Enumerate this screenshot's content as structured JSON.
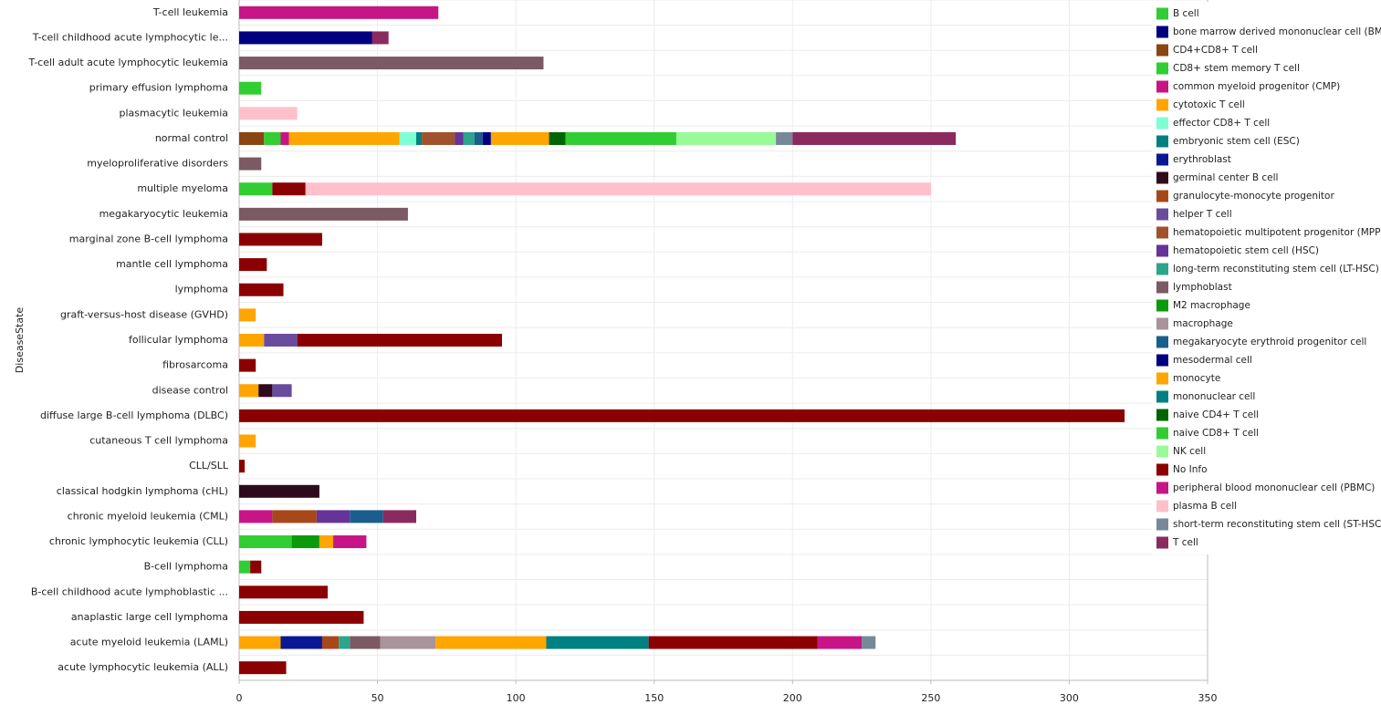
{
  "chart_data": {
    "type": "stacked-bar-horizontal",
    "y_label": "DiseaseState",
    "categories": [
      "T-cell leukemia",
      "T-cell childhood acute lymphocytic le...",
      "T-cell adult acute lymphocytic leukemia",
      "primary effusion lymphoma",
      "plasmacytic leukemia",
      "normal control",
      "myeloproliferative disorders",
      "multiple myeloma",
      "megakaryocytic leukemia",
      "marginal zone B-cell lymphoma",
      "mantle cell lymphoma",
      "lymphoma",
      "graft-versus-host disease (GVHD)",
      "follicular lymphoma",
      "fibrosarcoma",
      "disease control",
      "diffuse large B-cell lymphoma (DLBC)",
      "cutaneous T cell lymphoma",
      "CLL/SLL",
      "classical hodgkin lymphoma (cHL)",
      "chronic myeloid leukemia (CML)",
      "chronic lymphocytic leukemia (CLL)",
      "B-cell lymphoma",
      "B-cell childhood acute lymphoblastic ...",
      "anaplastic large cell lymphoma",
      "acute myeloid leukemia (LAML)",
      "acute lymphocytic leukemia (ALL)"
    ],
    "xlim": [
      0,
      350
    ],
    "xticks": [
      0,
      50,
      100,
      150,
      200,
      250,
      300,
      350
    ],
    "grid": true,
    "legend": "top-right",
    "series": [
      {
        "name": "B cell",
        "color": "#32cd32",
        "values": [
          null,
          null,
          null,
          8,
          null,
          null,
          null,
          12,
          null,
          null,
          null,
          null,
          null,
          null,
          null,
          null,
          null,
          null,
          null,
          null,
          null,
          19,
          4,
          null,
          null,
          null,
          null
        ]
      },
      {
        "name": "bone marrow derived mononuclear cell (BMMC)",
        "color": "#000080",
        "values": [
          null,
          48,
          null,
          null,
          null,
          null,
          null,
          null,
          null,
          null,
          null,
          null,
          null,
          null,
          null,
          null,
          null,
          null,
          null,
          null,
          null,
          null,
          null,
          null,
          null,
          null,
          null
        ]
      },
      {
        "name": "CD4+CD8+ T cell",
        "color": "#8b4513",
        "values": [
          null,
          null,
          null,
          null,
          null,
          9,
          null,
          null,
          null,
          null,
          null,
          null,
          null,
          null,
          null,
          null,
          null,
          null,
          null,
          null,
          null,
          null,
          null,
          null,
          null,
          null,
          null
        ]
      },
      {
        "name": "CD8+ stem memory T cell",
        "color": "#32cd32",
        "values": [
          null,
          null,
          null,
          null,
          null,
          6,
          null,
          null,
          null,
          null,
          null,
          null,
          null,
          null,
          null,
          null,
          null,
          null,
          null,
          null,
          null,
          null,
          null,
          null,
          null,
          null,
          null
        ]
      },
      {
        "name": "common myeloid progenitor (CMP)",
        "color": "#c71585",
        "values": [
          null,
          null,
          null,
          null,
          null,
          3,
          null,
          null,
          null,
          null,
          null,
          null,
          null,
          null,
          null,
          null,
          null,
          null,
          null,
          null,
          12,
          null,
          null,
          null,
          null,
          null,
          null
        ]
      },
      {
        "name": "cytotoxic T cell",
        "color": "#ffa500",
        "values": [
          null,
          null,
          null,
          null,
          null,
          40,
          null,
          null,
          null,
          null,
          null,
          null,
          6,
          9,
          null,
          7,
          null,
          6,
          null,
          null,
          null,
          null,
          null,
          null,
          null,
          15,
          null
        ]
      },
      {
        "name": "effector CD8+ T cell",
        "color": "#7fffd4",
        "values": [
          null,
          null,
          null,
          null,
          null,
          6,
          null,
          null,
          null,
          null,
          null,
          null,
          null,
          null,
          null,
          null,
          null,
          null,
          null,
          null,
          null,
          null,
          null,
          null,
          null,
          null,
          null
        ]
      },
      {
        "name": "embryonic stem cell (ESC)",
        "color": "#008080",
        "values": [
          null,
          null,
          null,
          null,
          null,
          2,
          null,
          null,
          null,
          null,
          null,
          null,
          null,
          null,
          null,
          null,
          null,
          null,
          null,
          null,
          null,
          null,
          null,
          null,
          null,
          null,
          null
        ]
      },
      {
        "name": "erythroblast",
        "color": "#0a1896",
        "values": [
          null,
          null,
          null,
          null,
          null,
          null,
          null,
          null,
          null,
          null,
          null,
          null,
          null,
          null,
          null,
          null,
          null,
          null,
          null,
          null,
          null,
          null,
          null,
          null,
          null,
          15,
          null
        ]
      },
      {
        "name": "germinal center B cell",
        "color": "#2e0a1c",
        "values": [
          null,
          null,
          null,
          null,
          null,
          null,
          null,
          null,
          null,
          null,
          null,
          null,
          null,
          null,
          null,
          5,
          null,
          null,
          null,
          29,
          null,
          null,
          null,
          null,
          null,
          null,
          null
        ]
      },
      {
        "name": "granulocyte-monocyte progenitor",
        "color": "#a8481a",
        "values": [
          null,
          null,
          null,
          null,
          null,
          null,
          null,
          null,
          null,
          null,
          null,
          null,
          null,
          null,
          null,
          null,
          null,
          null,
          null,
          null,
          16,
          null,
          null,
          null,
          null,
          6,
          null
        ]
      },
      {
        "name": "helper T cell",
        "color": "#6a4c9c",
        "values": [
          null,
          null,
          null,
          null,
          null,
          null,
          null,
          null,
          null,
          null,
          null,
          null,
          null,
          12,
          null,
          7,
          null,
          null,
          null,
          null,
          null,
          null,
          null,
          null,
          null,
          null,
          null
        ]
      },
      {
        "name": "hematopoietic multipotent progenitor (MPP)",
        "color": "#a0522d",
        "values": [
          null,
          null,
          null,
          null,
          null,
          12,
          null,
          null,
          null,
          null,
          null,
          null,
          null,
          null,
          null,
          null,
          null,
          null,
          null,
          null,
          null,
          null,
          null,
          null,
          null,
          null,
          null
        ]
      },
      {
        "name": "hematopoietic stem cell (HSC)",
        "color": "#663399",
        "values": [
          null,
          null,
          null,
          null,
          null,
          3,
          null,
          null,
          null,
          null,
          null,
          null,
          null,
          null,
          null,
          null,
          null,
          null,
          null,
          null,
          12,
          null,
          null,
          null,
          null,
          null,
          null
        ]
      },
      {
        "name": "long-term reconstituting stem cell (LT-HSC)",
        "color": "#2ca58d",
        "values": [
          null,
          null,
          null,
          null,
          null,
          4,
          null,
          null,
          null,
          null,
          null,
          null,
          null,
          null,
          null,
          null,
          null,
          null,
          null,
          null,
          null,
          null,
          null,
          null,
          null,
          4,
          null
        ]
      },
      {
        "name": "lymphoblast",
        "color": "#7b5a63",
        "values": [
          null,
          null,
          110,
          null,
          null,
          null,
          8,
          null,
          61,
          null,
          null,
          null,
          null,
          null,
          null,
          null,
          null,
          null,
          null,
          null,
          null,
          null,
          null,
          null,
          null,
          11,
          null
        ]
      },
      {
        "name": "M2 macrophage",
        "color": "#0a9a0a",
        "values": [
          null,
          null,
          null,
          null,
          null,
          null,
          null,
          null,
          null,
          null,
          null,
          null,
          null,
          null,
          null,
          null,
          null,
          null,
          null,
          null,
          null,
          10,
          null,
          null,
          null,
          null,
          null
        ]
      },
      {
        "name": "macrophage",
        "color": "#aa939b",
        "values": [
          null,
          null,
          null,
          null,
          null,
          null,
          null,
          null,
          null,
          null,
          null,
          null,
          null,
          null,
          null,
          null,
          null,
          null,
          null,
          null,
          null,
          null,
          null,
          null,
          null,
          20,
          null
        ]
      },
      {
        "name": "megakaryocyte erythroid progenitor cell",
        "color": "#1a5e8e",
        "values": [
          null,
          null,
          null,
          null,
          null,
          3,
          null,
          null,
          null,
          null,
          null,
          null,
          null,
          null,
          null,
          null,
          null,
          null,
          null,
          null,
          12,
          null,
          null,
          null,
          null,
          null,
          null
        ]
      },
      {
        "name": "mesodermal cell",
        "color": "#000080",
        "values": [
          null,
          null,
          null,
          null,
          null,
          3,
          null,
          null,
          null,
          null,
          null,
          null,
          null,
          null,
          null,
          null,
          null,
          null,
          null,
          null,
          null,
          null,
          null,
          null,
          null,
          null,
          null
        ]
      },
      {
        "name": "monocyte",
        "color": "#ffa500",
        "values": [
          null,
          null,
          null,
          null,
          null,
          21,
          null,
          null,
          null,
          null,
          null,
          null,
          null,
          null,
          null,
          null,
          null,
          null,
          null,
          null,
          null,
          5,
          null,
          null,
          null,
          40,
          null
        ]
      },
      {
        "name": "mononuclear cell",
        "color": "#008080",
        "values": [
          null,
          null,
          null,
          null,
          null,
          null,
          null,
          null,
          null,
          null,
          null,
          null,
          null,
          null,
          null,
          null,
          null,
          null,
          null,
          null,
          null,
          null,
          null,
          null,
          null,
          37,
          null
        ]
      },
      {
        "name": "naive CD4+ T cell",
        "color": "#006400",
        "values": [
          null,
          null,
          null,
          null,
          null,
          6,
          null,
          null,
          null,
          null,
          null,
          null,
          null,
          null,
          null,
          null,
          null,
          null,
          null,
          null,
          null,
          null,
          null,
          null,
          null,
          null,
          null
        ]
      },
      {
        "name": "naive CD8+ T cell",
        "color": "#32cd32",
        "values": [
          null,
          null,
          null,
          null,
          null,
          40,
          null,
          null,
          null,
          null,
          null,
          null,
          null,
          null,
          null,
          null,
          null,
          null,
          null,
          null,
          null,
          null,
          null,
          null,
          null,
          null,
          null
        ]
      },
      {
        "name": "NK cell",
        "color": "#98fb98",
        "values": [
          null,
          null,
          null,
          null,
          null,
          36,
          null,
          null,
          null,
          null,
          null,
          null,
          null,
          null,
          null,
          null,
          null,
          null,
          null,
          null,
          null,
          null,
          null,
          null,
          null,
          null,
          null
        ]
      },
      {
        "name": "No Info",
        "color": "#8b0000",
        "values": [
          null,
          null,
          null,
          null,
          null,
          null,
          null,
          12,
          null,
          30,
          10,
          16,
          null,
          74,
          6,
          null,
          320,
          null,
          2,
          null,
          null,
          null,
          4,
          32,
          45,
          61,
          17
        ]
      },
      {
        "name": "peripheral blood mononuclear cell (PBMC)",
        "color": "#c71585",
        "values": [
          72,
          null,
          null,
          null,
          null,
          null,
          null,
          null,
          null,
          null,
          null,
          null,
          null,
          null,
          null,
          null,
          null,
          null,
          null,
          null,
          null,
          12,
          null,
          null,
          null,
          16,
          null
        ]
      },
      {
        "name": "plasma B cell",
        "color": "#ffc0cb",
        "values": [
          null,
          null,
          null,
          null,
          21,
          null,
          null,
          226,
          null,
          null,
          null,
          null,
          null,
          null,
          null,
          null,
          null,
          null,
          null,
          null,
          null,
          null,
          null,
          null,
          null,
          null,
          null
        ]
      },
      {
        "name": "short-term reconstituting stem cell (ST-HSC)",
        "color": "#778899",
        "values": [
          null,
          null,
          null,
          null,
          null,
          6,
          null,
          null,
          null,
          null,
          null,
          null,
          null,
          null,
          null,
          null,
          null,
          null,
          null,
          null,
          null,
          null,
          null,
          null,
          null,
          5,
          null
        ]
      },
      {
        "name": "T cell",
        "color": "#8b2a5e",
        "values": [
          null,
          6,
          null,
          null,
          null,
          59,
          null,
          null,
          null,
          null,
          null,
          null,
          null,
          null,
          null,
          null,
          null,
          null,
          null,
          null,
          12,
          null,
          null,
          null,
          null,
          null,
          null
        ]
      }
    ]
  }
}
